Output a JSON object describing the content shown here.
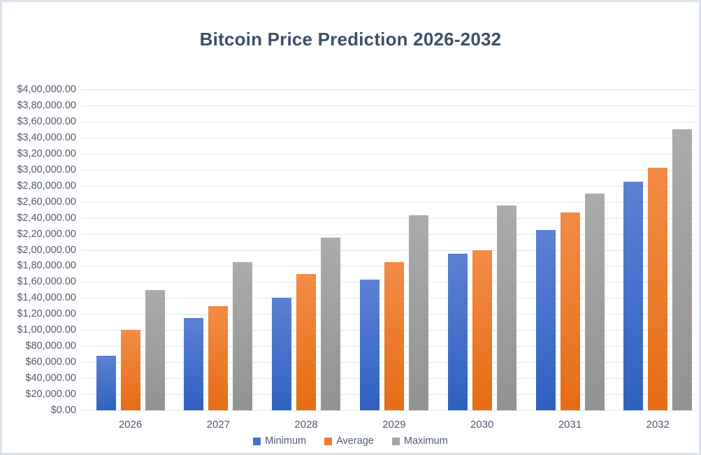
{
  "frame": {
    "background": "#ffffff",
    "border_color": "#dbe2eb"
  },
  "chart_data": {
    "type": "bar",
    "title": "Bitcoin Price Prediction 2026-2032",
    "title_color": "#3d5068",
    "categories": [
      "2026",
      "2027",
      "2028",
      "2029",
      "2030",
      "2031",
      "2032"
    ],
    "series": [
      {
        "name": "Minimum",
        "values": [
          68000,
          115000,
          140000,
          163000,
          195000,
          225000,
          285000
        ],
        "color_top": "#5b81d3",
        "color_bottom": "#2e62c0",
        "legend_color": "#4472c4"
      },
      {
        "name": "Average",
        "values": [
          100000,
          130000,
          170000,
          185000,
          200000,
          247000,
          302000
        ],
        "color_top": "#f28b45",
        "color_bottom": "#e66d15",
        "legend_color": "#ed7d31"
      },
      {
        "name": "Maximum",
        "values": [
          150000,
          185000,
          215000,
          243000,
          255000,
          270000,
          350000
        ],
        "color_top": "#acabab",
        "color_bottom": "#939292",
        "legend_color": "#a5a5a5"
      }
    ],
    "xlabel": "",
    "ylabel": "",
    "ylim": [
      0,
      400000
    ],
    "y_tick_step": 20000,
    "y_tick_labels": [
      "$4,00,000.00",
      "$3,80,000.00",
      "$3,60,000.00",
      "$3,40,000.00",
      "$3,20,000.00",
      "$3,00,000.00",
      "$2,80,000.00",
      "$2,60,000.00",
      "$2,40,000.00",
      "$2,20,000.00",
      "$2,00,000.00",
      "$1,80,000.00",
      "$1,60,000.00",
      "$1,40,000.00",
      "$1,20,000.00",
      "$1,00,000.00",
      "$80,000.00",
      "$60,000.00",
      "$40,000.00",
      "$20,000.00",
      "$0.00"
    ],
    "grid": true,
    "gridline_color": "#dee5ee",
    "axis_text_color": "#4d5a70",
    "legend_position": "bottom",
    "number_format": "indian-currency"
  }
}
